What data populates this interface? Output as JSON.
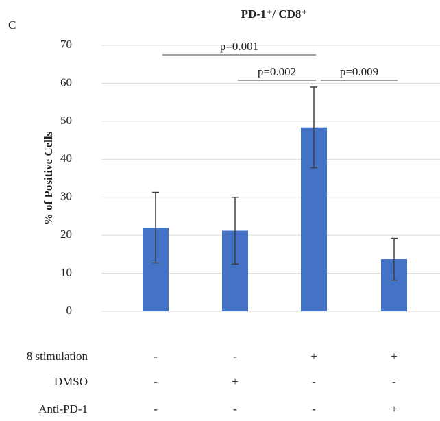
{
  "chart_data": {
    "type": "bar",
    "panel_label": "C",
    "title": "PD-1⁺/ CD8⁺",
    "ylabel": "% of Positive Cells",
    "categories": [
      null,
      null,
      null,
      null
    ],
    "values": [
      22,
      21.2,
      48.4,
      13.7
    ],
    "errors": [
      9.3,
      8.8,
      10.6,
      5.5
    ],
    "color": "#4472c4",
    "error_color": "#404040",
    "ylim": [
      0,
      70
    ],
    "yticks": [
      0,
      10,
      20,
      30,
      40,
      50,
      60,
      70
    ],
    "grid": true,
    "annotations": [
      "p=0.001",
      "p=0.002",
      "p=0.009"
    ],
    "treatments": [
      {
        "label": "8 stimulation",
        "signs": [
          "-",
          "-",
          "+",
          "+"
        ]
      },
      {
        "label": "DMSO",
        "signs": [
          "-",
          "+",
          "-",
          "-"
        ]
      },
      {
        "label": "Anti-PD-1",
        "signs": [
          "-",
          "-",
          "-",
          "+"
        ]
      }
    ]
  }
}
